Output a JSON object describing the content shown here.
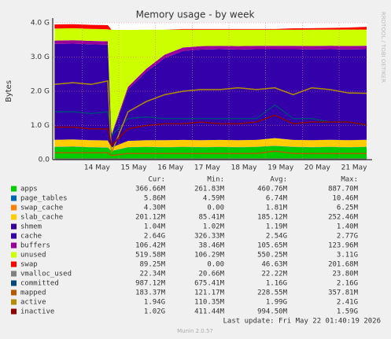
{
  "chart_data": {
    "type": "area",
    "stacked_area": true,
    "title": "Memory usage - by week",
    "y_label": "Bytes",
    "side_label": "RRDTOOL / TOBI OETIKER",
    "footer": "Last update: Fri May 22 01:40:19 2026",
    "version": "Munin 2.0.57",
    "legend_columns": [
      "Cur:",
      "Min:",
      "Avg:",
      "Max:"
    ],
    "x": [
      13.25,
      13.75,
      14.25,
      14.7,
      14.8,
      15.25,
      15.75,
      16.25,
      16.75,
      17.25,
      17.75,
      18.25,
      18.75,
      19.25,
      19.75,
      20.25,
      20.75,
      21.25,
      21.75
    ],
    "xlim": [
      13.2,
      21.77
    ],
    "xticks": [
      {
        "value": 14,
        "label": "14 May"
      },
      {
        "value": 15,
        "label": "15 May"
      },
      {
        "value": 16,
        "label": "16 May"
      },
      {
        "value": 17,
        "label": "17 May"
      },
      {
        "value": 18,
        "label": "18 May"
      },
      {
        "value": 19,
        "label": "19 May"
      },
      {
        "value": 20,
        "label": "20 May"
      },
      {
        "value": 21,
        "label": "21 May"
      }
    ],
    "ylim": [
      0,
      4
    ],
    "yticks": [
      {
        "value": 0,
        "label": "0.0"
      },
      {
        "value": 1,
        "label": "1.0 G"
      },
      {
        "value": 2,
        "label": "2.0 G"
      },
      {
        "value": 3,
        "label": "3.0 G"
      },
      {
        "value": 4,
        "label": "4.0 G"
      }
    ],
    "grid": true,
    "series": [
      {
        "name": "apps",
        "color": "#00cc00",
        "stacked": true,
        "values": [
          0.37,
          0.38,
          0.36,
          0.35,
          0.25,
          0.36,
          0.37,
          0.36,
          0.37,
          0.36,
          0.37,
          0.36,
          0.37,
          0.4,
          0.37,
          0.36,
          0.37,
          0.36,
          0.37
        ],
        "stats": [
          "366.66M",
          "261.83M",
          "460.76M",
          "887.70M"
        ]
      },
      {
        "name": "page_tables",
        "color": "#0066b3",
        "stacked": true,
        "values": [
          0.006,
          0.006,
          0.006,
          0.006,
          0.005,
          0.006,
          0.006,
          0.006,
          0.006,
          0.006,
          0.006,
          0.006,
          0.006,
          0.006,
          0.006,
          0.006,
          0.006,
          0.006,
          0.006
        ],
        "stats": [
          "5.86M",
          "4.59M",
          "6.74M",
          "10.46M"
        ]
      },
      {
        "name": "swap_cache",
        "color": "#ff8000",
        "stacked": true,
        "values": [
          0.004,
          0.004,
          0.004,
          0.004,
          0.0,
          0.002,
          0.002,
          0.002,
          0.002,
          0.002,
          0.002,
          0.002,
          0.002,
          0.002,
          0.002,
          0.004,
          0.004,
          0.004,
          0.004
        ],
        "stats": [
          "4.30M",
          "0.00",
          "1.81M",
          "6.25M"
        ]
      },
      {
        "name": "slab_cache",
        "color": "#ffcc00",
        "stacked": true,
        "values": [
          0.2,
          0.2,
          0.2,
          0.2,
          0.1,
          0.18,
          0.19,
          0.2,
          0.2,
          0.2,
          0.2,
          0.2,
          0.2,
          0.22,
          0.2,
          0.2,
          0.2,
          0.2,
          0.2
        ],
        "stats": [
          "201.12M",
          "85.41M",
          "185.12M",
          "252.46M"
        ]
      },
      {
        "name": "shmem",
        "color": "#330099",
        "stacked": true,
        "values": [
          0.001,
          0.001,
          0.001,
          0.001,
          0.001,
          0.001,
          0.001,
          0.001,
          0.001,
          0.001,
          0.001,
          0.001,
          0.001,
          0.001,
          0.001,
          0.001,
          0.001,
          0.001,
          0.001
        ],
        "stats": [
          "1.04M",
          "1.02M",
          "1.19M",
          "1.40M"
        ]
      },
      {
        "name": "cache",
        "color": "#3300aa",
        "stacked": true,
        "values": [
          2.8,
          2.8,
          2.8,
          2.8,
          0.33,
          1.5,
          2.0,
          2.4,
          2.6,
          2.65,
          2.65,
          2.65,
          2.65,
          2.6,
          2.65,
          2.65,
          2.65,
          2.65,
          2.65
        ],
        "stats": [
          "2.64G",
          "326.33M",
          "2.54G",
          "2.77G"
        ]
      },
      {
        "name": "buffers",
        "color": "#990099",
        "stacked": true,
        "values": [
          0.1,
          0.1,
          0.1,
          0.1,
          0.04,
          0.08,
          0.09,
          0.1,
          0.1,
          0.1,
          0.1,
          0.1,
          0.1,
          0.1,
          0.1,
          0.1,
          0.1,
          0.1,
          0.1
        ],
        "stats": [
          "106.42M",
          "38.46M",
          "105.65M",
          "123.96M"
        ]
      },
      {
        "name": "unused",
        "color": "#ccff00",
        "stacked": true,
        "values": [
          0.35,
          0.35,
          0.35,
          0.35,
          3.07,
          1.66,
          1.14,
          0.73,
          0.52,
          0.48,
          0.47,
          0.48,
          0.47,
          0.47,
          0.47,
          0.48,
          0.47,
          0.48,
          0.47
        ],
        "stats": [
          "519.58M",
          "106.29M",
          "550.25M",
          "3.11G"
        ]
      },
      {
        "name": "swap",
        "color": "#ff0000",
        "stacked": true,
        "values": [
          0.12,
          0.12,
          0.12,
          0.12,
          0.0,
          0.0,
          0.0,
          0.0,
          0.02,
          0.02,
          0.02,
          0.02,
          0.02,
          0.02,
          0.04,
          0.04,
          0.05,
          0.06,
          0.08
        ],
        "stats": [
          "89.25M",
          "0.00",
          "46.63M",
          "201.68M"
        ]
      },
      {
        "name": "vmalloc_used",
        "color": "#808080",
        "stacked": false,
        "values": [
          0.02,
          0.02,
          0.02,
          0.02,
          0.02,
          0.02,
          0.02,
          0.02,
          0.02,
          0.02,
          0.02,
          0.02,
          0.02,
          0.02,
          0.02,
          0.02,
          0.02,
          0.02,
          0.02
        ],
        "stats": [
          "22.34M",
          "20.66M",
          "22.22M",
          "23.80M"
        ]
      },
      {
        "name": "committed",
        "color": "#00487d",
        "stacked": false,
        "values": [
          1.4,
          1.4,
          1.35,
          1.4,
          0.7,
          1.2,
          1.25,
          1.2,
          1.2,
          1.2,
          1.2,
          1.2,
          1.2,
          1.6,
          1.2,
          1.2,
          1.1,
          1.1,
          1.0
        ],
        "stats": [
          "987.12M",
          "675.41M",
          "1.16G",
          "2.16G"
        ]
      },
      {
        "name": "mapped",
        "color": "#b35a00",
        "stacked": false,
        "values": [
          0.2,
          0.2,
          0.2,
          0.2,
          0.12,
          0.18,
          0.18,
          0.18,
          0.18,
          0.18,
          0.18,
          0.18,
          0.18,
          0.25,
          0.18,
          0.18,
          0.18,
          0.18,
          0.18
        ],
        "stats": [
          "183.37M",
          "121.17M",
          "228.55M",
          "357.81M"
        ]
      },
      {
        "name": "active",
        "color": "#b38f00",
        "stacked": false,
        "values": [
          2.2,
          2.25,
          2.2,
          2.3,
          0.2,
          1.4,
          1.7,
          1.9,
          2.0,
          2.05,
          2.05,
          2.1,
          2.05,
          2.1,
          1.9,
          2.1,
          2.05,
          1.95,
          1.94
        ],
        "stats": [
          "1.94G",
          "110.35M",
          "1.99G",
          "2.41G"
        ]
      },
      {
        "name": "inactive",
        "color": "#8f0000",
        "stacked": false,
        "values": [
          0.95,
          0.95,
          0.9,
          0.9,
          0.42,
          0.9,
          1.0,
          1.05,
          1.05,
          1.1,
          1.05,
          1.05,
          1.1,
          1.3,
          1.05,
          1.1,
          1.1,
          1.1,
          1.02
        ],
        "stats": [
          "1.02G",
          "411.44M",
          "994.50M",
          "1.59G"
        ]
      }
    ]
  }
}
